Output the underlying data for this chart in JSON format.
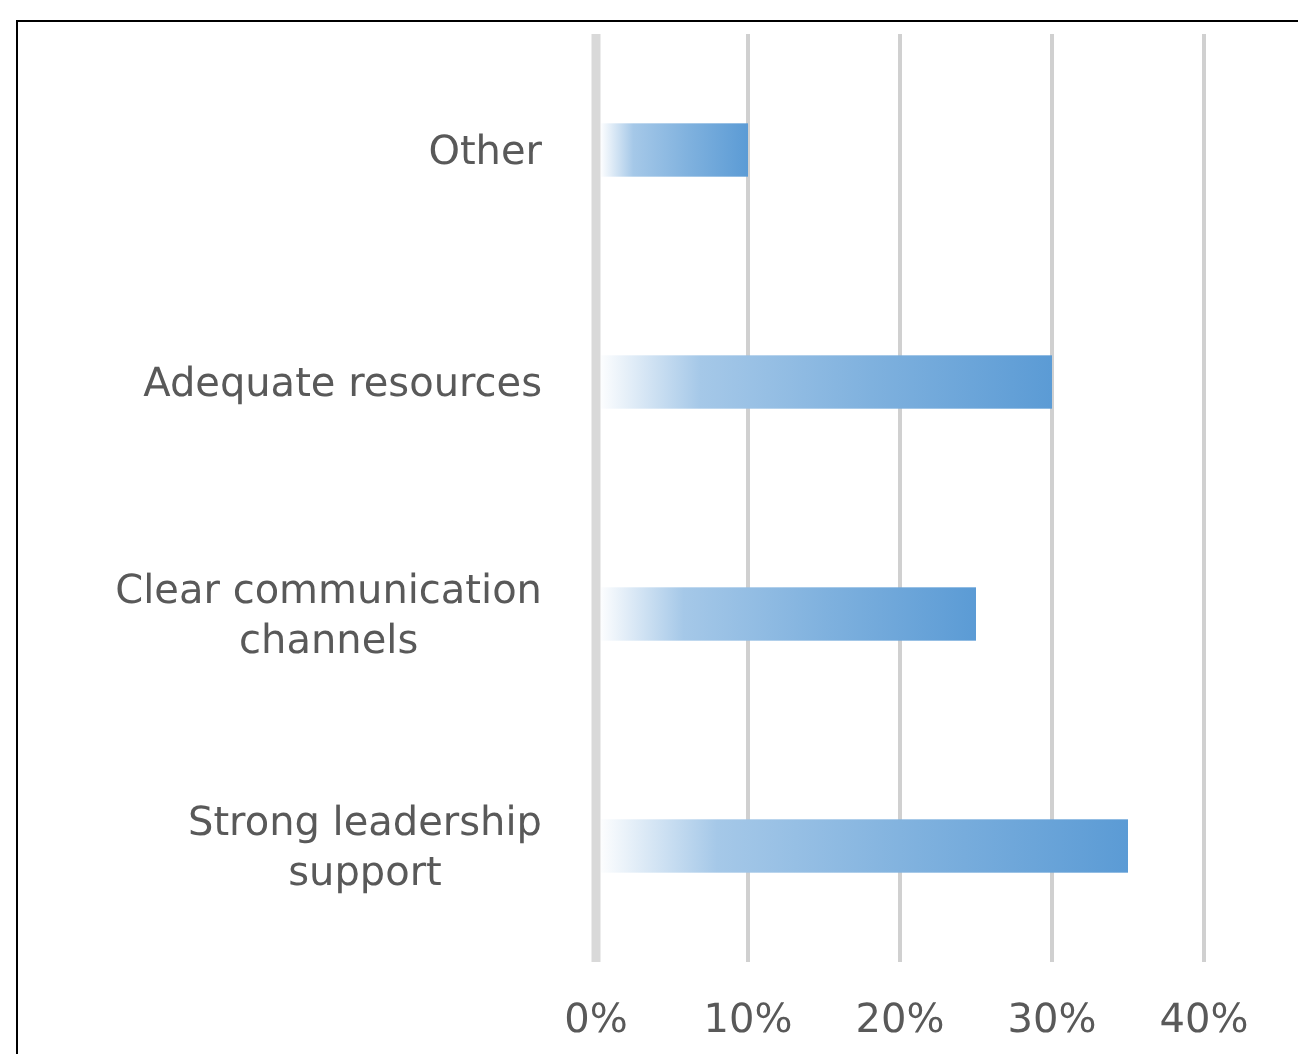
{
  "chart_data": {
    "type": "bar",
    "orientation": "horizontal",
    "categories": [
      "Other",
      "Adequate resources",
      "Clear communication channels",
      "Strong leadership support"
    ],
    "values": [
      10,
      30,
      25,
      35
    ],
    "color": "#5b9bd5",
    "xlim": [
      0,
      40
    ],
    "xticks": [
      {
        "value": 0,
        "label": "0%"
      },
      {
        "value": 10,
        "label": "10%"
      },
      {
        "value": 20,
        "label": "20%"
      },
      {
        "value": 30,
        "label": "30%"
      },
      {
        "value": 40,
        "label": "40%"
      }
    ],
    "grid": "x"
  }
}
